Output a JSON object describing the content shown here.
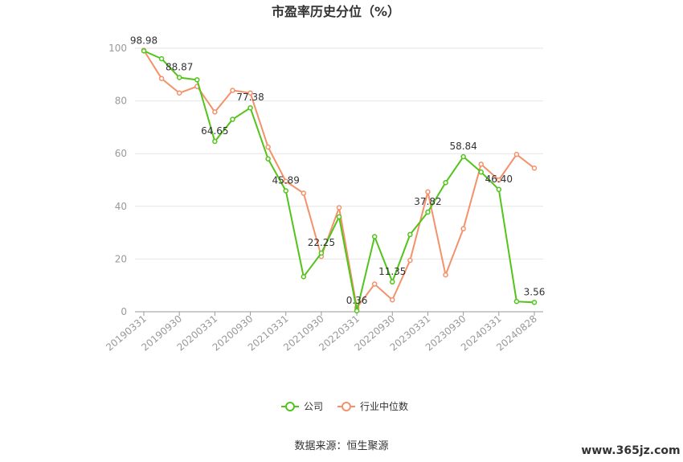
{
  "chart_data": {
    "type": "line",
    "title": "市盈率历史分位（%）",
    "ylim": [
      0,
      100
    ],
    "yticks": [
      0,
      20,
      40,
      60,
      80,
      100
    ],
    "grid": true,
    "legend_position": "bottom-center",
    "x_tick_labels": [
      "20190331",
      "20190930",
      "20200331",
      "20200930",
      "20210331",
      "20210930",
      "20220331",
      "20220930",
      "20230331",
      "20230930",
      "20240331",
      "20240828"
    ],
    "x": [
      "20190331",
      "20190630",
      "20190930",
      "20191231",
      "20200331",
      "20200630",
      "20200930",
      "20201231",
      "20210331",
      "20210630",
      "20210930",
      "20211231",
      "20220331",
      "20220630",
      "20220930",
      "20221231",
      "20230331",
      "20230630",
      "20230930",
      "20231231",
      "20240331",
      "20240630",
      "20240828"
    ],
    "series": [
      {
        "name": "公司",
        "color": "#52c41a",
        "values": [
          98.98,
          96.0,
          88.87,
          88.0,
          64.65,
          73.0,
          77.38,
          58.0,
          45.89,
          13.3,
          22.25,
          36.0,
          0.36,
          28.5,
          11.35,
          29.3,
          37.82,
          49.0,
          58.84,
          53.0,
          46.4,
          3.9,
          3.56
        ]
      },
      {
        "name": "行业中位数",
        "color": "#f4916a",
        "values": [
          99.2,
          88.5,
          83.0,
          85.5,
          75.8,
          84.0,
          83.0,
          62.5,
          49.5,
          45.0,
          21.0,
          39.5,
          1.5,
          10.5,
          4.5,
          19.5,
          45.5,
          14.0,
          31.5,
          56.0,
          50.0,
          59.7,
          54.5
        ]
      }
    ],
    "data_labels": [
      {
        "index": 0,
        "text": "98.98"
      },
      {
        "index": 2,
        "text": "88.87"
      },
      {
        "index": 4,
        "text": "64.65"
      },
      {
        "index": 6,
        "text": "77.38"
      },
      {
        "index": 8,
        "text": "45.89"
      },
      {
        "index": 10,
        "text": "22.25"
      },
      {
        "index": 12,
        "text": "0.36"
      },
      {
        "index": 14,
        "text": "11.35"
      },
      {
        "index": 16,
        "text": "37.82"
      },
      {
        "index": 18,
        "text": "58.84"
      },
      {
        "index": 20,
        "text": "46.40"
      },
      {
        "index": 22,
        "text": "3.56"
      }
    ]
  },
  "source": "数据来源：恒生聚源",
  "watermark": "www.365jz.com"
}
